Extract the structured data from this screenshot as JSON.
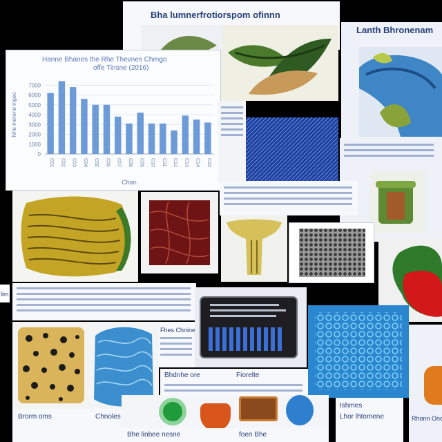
{
  "labels": {
    "top_heading": "Bha lumnerfrotiorspom ofinnn",
    "right_heading": "Lanth Bhronenam",
    "chart_title": "Hanne Bhanes the Rhe Thevnes Chrngo",
    "chart_subtitle": "offe Tinsne (2016)",
    "chart_ylabel": "Nhe inorene ingeo",
    "chart_xlabel": "Chan",
    "small_label_left": "lim",
    "caption_a": "Bhdnhe ore",
    "caption_b": "Fiorelte",
    "caption_c": "Brorm oms",
    "caption_d": "Chnoles",
    "caption_e": "Bhe linbee nesne",
    "caption_f": "foen Bhe",
    "caption_g": "Ishmes",
    "caption_h": "Lhor lhtomene",
    "caption_i": "Rhonn Oncens",
    "caption_j": "Fhes Chnine"
  },
  "chart_data": {
    "type": "bar",
    "title": "Hanne Bhanes the Rhe Thevnes Chrngo",
    "subtitle": "offe Tinsne (2016)",
    "ylabel": "Nhe inorene ingeo",
    "xlabel": "Chan",
    "ylim": [
      0,
      8
    ],
    "yticks": [
      "0",
      "1000",
      "2000",
      "3000",
      "4000",
      "5000",
      "6000",
      "7000"
    ],
    "categories": [
      "C01",
      "C02",
      "C03",
      "C04",
      "C05",
      "C06",
      "C07",
      "C08",
      "C09",
      "C10",
      "C11",
      "C12",
      "C13",
      "C14",
      "C15"
    ],
    "values": [
      6.2,
      7.4,
      6.8,
      5.6,
      5.0,
      5.0,
      3.8,
      3.1,
      4.2,
      3.1,
      3.1,
      2.4,
      3.9,
      3.5,
      3.2
    ],
    "bar_color": "#6c9bd8",
    "grid": true
  },
  "colors": {
    "background": "#000000",
    "paper": "#f7f8fb",
    "ink": "#27407a",
    "accent_blue": "#2f63c0"
  },
  "icons": {
    "leaf": "leaf-illustration",
    "monitor": "monitor-illustration",
    "fabric": "fabric-texture"
  }
}
